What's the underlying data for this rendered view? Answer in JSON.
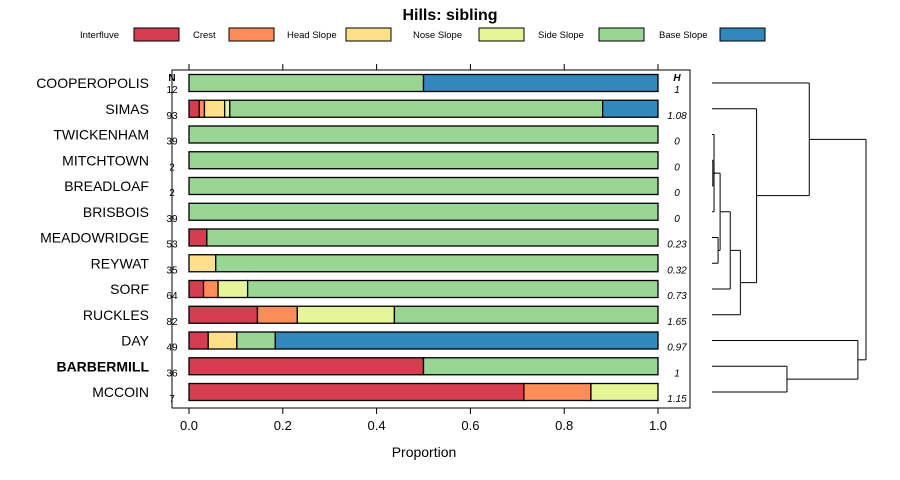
{
  "chart_data": {
    "type": "bar",
    "stacked": true,
    "orientation": "horizontal",
    "title": "Hills: sibling",
    "xlabel": "Proportion",
    "ylabel": "",
    "xlim": [
      0,
      1
    ],
    "xticks": [
      "0.0",
      "0.2",
      "0.4",
      "0.6",
      "0.8",
      "1.0"
    ],
    "legend": [
      {
        "name": "Interfluve",
        "color": "#d53e4f"
      },
      {
        "name": "Crest",
        "color": "#fc8d59"
      },
      {
        "name": "Head Slope",
        "color": "#fee08b"
      },
      {
        "name": "Nose Slope",
        "color": "#e6f598"
      },
      {
        "name": "Side Slope",
        "color": "#99d594"
      },
      {
        "name": "Base Slope",
        "color": "#3288bd"
      }
    ],
    "n_header": "N",
    "h_header": "H",
    "rows": [
      {
        "name": "COOPEROPOLIS",
        "n": "12",
        "h": "1",
        "bold": false,
        "values": [
          0,
          0,
          0,
          0,
          0.5,
          0.5
        ]
      },
      {
        "name": "SIMAS",
        "n": "93",
        "h": "1.08",
        "bold": false,
        "values": [
          0.022,
          0.011,
          0.043,
          0.011,
          0.795,
          0.118
        ]
      },
      {
        "name": "TWICKENHAM",
        "n": "39",
        "h": "0",
        "bold": false,
        "values": [
          0,
          0,
          0,
          0,
          1,
          0
        ]
      },
      {
        "name": "MITCHTOWN",
        "n": "2",
        "h": "0",
        "bold": false,
        "values": [
          0,
          0,
          0,
          0,
          1,
          0
        ]
      },
      {
        "name": "BREADLOAF",
        "n": "2",
        "h": "0",
        "bold": false,
        "values": [
          0,
          0,
          0,
          0,
          1,
          0
        ]
      },
      {
        "name": "BRISBOIS",
        "n": "39",
        "h": "0",
        "bold": false,
        "values": [
          0,
          0,
          0,
          0,
          1,
          0
        ]
      },
      {
        "name": "MEADOWRIDGE",
        "n": "53",
        "h": "0.23",
        "bold": false,
        "values": [
          0.038,
          0,
          0,
          0,
          0.962,
          0
        ]
      },
      {
        "name": "REYWAT",
        "n": "35",
        "h": "0.32",
        "bold": false,
        "values": [
          0,
          0,
          0.057,
          0,
          0.943,
          0
        ]
      },
      {
        "name": "SORF",
        "n": "64",
        "h": "0.73",
        "bold": false,
        "values": [
          0.031,
          0.031,
          0,
          0.063,
          0.875,
          0
        ]
      },
      {
        "name": "RUCKLES",
        "n": "82",
        "h": "1.65",
        "bold": false,
        "values": [
          0.146,
          0.085,
          0,
          0.207,
          0.562,
          0
        ]
      },
      {
        "name": "DAY",
        "n": "49",
        "h": "0.97",
        "bold": false,
        "values": [
          0.041,
          0,
          0.061,
          0,
          0.082,
          0.816
        ]
      },
      {
        "name": "BARBERMILL",
        "n": "36",
        "h": "1",
        "bold": true,
        "values": [
          0.5,
          0,
          0,
          0,
          0.5,
          0
        ]
      },
      {
        "name": "MCCOIN",
        "n": "7",
        "h": "1.15",
        "bold": false,
        "values": [
          0.714,
          0.143,
          0,
          0.143,
          0,
          0
        ]
      }
    ],
    "dendrogram": {
      "type": "hierarchical-clustering",
      "order": [
        "COOPEROPOLIS",
        "SIMAS",
        "TWICKENHAM",
        "MITCHTOWN",
        "BREADLOAF",
        "BRISBOIS",
        "MEADOWRIDGE",
        "REYWAT",
        "SORF",
        "RUCKLES",
        "DAY",
        "BARBERMILL",
        "MCCOIN"
      ],
      "merges": [
        {
          "a": 3,
          "b": 4,
          "height": 0.02
        },
        {
          "a": 2,
          "b": 5,
          "height": 0.05
        },
        {
          "a": 13,
          "b": 14,
          "height": 0.1
        },
        {
          "a": 6,
          "b": 7,
          "height": 0.15
        },
        {
          "a": 15,
          "b": 16,
          "height": 0.2
        },
        {
          "a": 17,
          "b": 8,
          "height": 0.45
        },
        {
          "a": 18,
          "b": 9,
          "height": 0.7
        },
        {
          "a": 19,
          "b": 1,
          "height": 1.1
        },
        {
          "a": 0,
          "b": 20,
          "height": 2.4
        },
        {
          "a": 11,
          "b": 12,
          "height": 1.85
        },
        {
          "a": 10,
          "b": 22,
          "height": 3.6
        },
        {
          "a": 21,
          "b": 23,
          "height": 3.8
        }
      ],
      "max_height": 3.8
    }
  }
}
